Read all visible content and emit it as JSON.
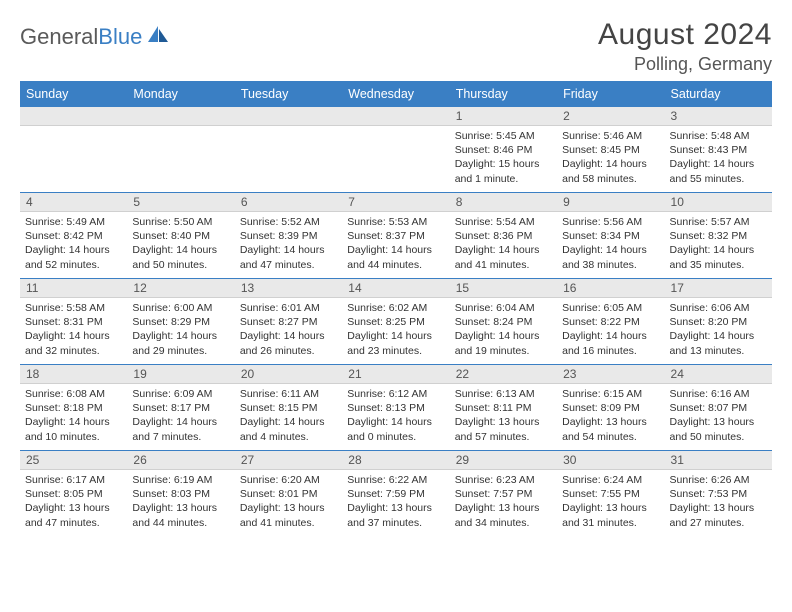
{
  "logo": {
    "part1": "General",
    "part2": "Blue"
  },
  "title": "August 2024",
  "location": "Polling, Germany",
  "colors": {
    "header_bg": "#3a7fc4",
    "header_text": "#ffffff",
    "daynum_bg": "#e9e9e9",
    "text": "#333333",
    "logo_gray": "#5a5a5a",
    "logo_blue": "#3a7fc4"
  },
  "fonts": {
    "title_size": 30,
    "location_size": 18,
    "weekday_size": 12.5,
    "daynum_size": 12,
    "detail_size": 10.5
  },
  "weekdays": [
    "Sunday",
    "Monday",
    "Tuesday",
    "Wednesday",
    "Thursday",
    "Friday",
    "Saturday"
  ],
  "weeks": [
    [
      null,
      null,
      null,
      null,
      {
        "n": "1",
        "sunrise": "5:45 AM",
        "sunset": "8:46 PM",
        "daylight": "15 hours and 1 minute."
      },
      {
        "n": "2",
        "sunrise": "5:46 AM",
        "sunset": "8:45 PM",
        "daylight": "14 hours and 58 minutes."
      },
      {
        "n": "3",
        "sunrise": "5:48 AM",
        "sunset": "8:43 PM",
        "daylight": "14 hours and 55 minutes."
      }
    ],
    [
      {
        "n": "4",
        "sunrise": "5:49 AM",
        "sunset": "8:42 PM",
        "daylight": "14 hours and 52 minutes."
      },
      {
        "n": "5",
        "sunrise": "5:50 AM",
        "sunset": "8:40 PM",
        "daylight": "14 hours and 50 minutes."
      },
      {
        "n": "6",
        "sunrise": "5:52 AM",
        "sunset": "8:39 PM",
        "daylight": "14 hours and 47 minutes."
      },
      {
        "n": "7",
        "sunrise": "5:53 AM",
        "sunset": "8:37 PM",
        "daylight": "14 hours and 44 minutes."
      },
      {
        "n": "8",
        "sunrise": "5:54 AM",
        "sunset": "8:36 PM",
        "daylight": "14 hours and 41 minutes."
      },
      {
        "n": "9",
        "sunrise": "5:56 AM",
        "sunset": "8:34 PM",
        "daylight": "14 hours and 38 minutes."
      },
      {
        "n": "10",
        "sunrise": "5:57 AM",
        "sunset": "8:32 PM",
        "daylight": "14 hours and 35 minutes."
      }
    ],
    [
      {
        "n": "11",
        "sunrise": "5:58 AM",
        "sunset": "8:31 PM",
        "daylight": "14 hours and 32 minutes."
      },
      {
        "n": "12",
        "sunrise": "6:00 AM",
        "sunset": "8:29 PM",
        "daylight": "14 hours and 29 minutes."
      },
      {
        "n": "13",
        "sunrise": "6:01 AM",
        "sunset": "8:27 PM",
        "daylight": "14 hours and 26 minutes."
      },
      {
        "n": "14",
        "sunrise": "6:02 AM",
        "sunset": "8:25 PM",
        "daylight": "14 hours and 23 minutes."
      },
      {
        "n": "15",
        "sunrise": "6:04 AM",
        "sunset": "8:24 PM",
        "daylight": "14 hours and 19 minutes."
      },
      {
        "n": "16",
        "sunrise": "6:05 AM",
        "sunset": "8:22 PM",
        "daylight": "14 hours and 16 minutes."
      },
      {
        "n": "17",
        "sunrise": "6:06 AM",
        "sunset": "8:20 PM",
        "daylight": "14 hours and 13 minutes."
      }
    ],
    [
      {
        "n": "18",
        "sunrise": "6:08 AM",
        "sunset": "8:18 PM",
        "daylight": "14 hours and 10 minutes."
      },
      {
        "n": "19",
        "sunrise": "6:09 AM",
        "sunset": "8:17 PM",
        "daylight": "14 hours and 7 minutes."
      },
      {
        "n": "20",
        "sunrise": "6:11 AM",
        "sunset": "8:15 PM",
        "daylight": "14 hours and 4 minutes."
      },
      {
        "n": "21",
        "sunrise": "6:12 AM",
        "sunset": "8:13 PM",
        "daylight": "14 hours and 0 minutes."
      },
      {
        "n": "22",
        "sunrise": "6:13 AM",
        "sunset": "8:11 PM",
        "daylight": "13 hours and 57 minutes."
      },
      {
        "n": "23",
        "sunrise": "6:15 AM",
        "sunset": "8:09 PM",
        "daylight": "13 hours and 54 minutes."
      },
      {
        "n": "24",
        "sunrise": "6:16 AM",
        "sunset": "8:07 PM",
        "daylight": "13 hours and 50 minutes."
      }
    ],
    [
      {
        "n": "25",
        "sunrise": "6:17 AM",
        "sunset": "8:05 PM",
        "daylight": "13 hours and 47 minutes."
      },
      {
        "n": "26",
        "sunrise": "6:19 AM",
        "sunset": "8:03 PM",
        "daylight": "13 hours and 44 minutes."
      },
      {
        "n": "27",
        "sunrise": "6:20 AM",
        "sunset": "8:01 PM",
        "daylight": "13 hours and 41 minutes."
      },
      {
        "n": "28",
        "sunrise": "6:22 AM",
        "sunset": "7:59 PM",
        "daylight": "13 hours and 37 minutes."
      },
      {
        "n": "29",
        "sunrise": "6:23 AM",
        "sunset": "7:57 PM",
        "daylight": "13 hours and 34 minutes."
      },
      {
        "n": "30",
        "sunrise": "6:24 AM",
        "sunset": "7:55 PM",
        "daylight": "13 hours and 31 minutes."
      },
      {
        "n": "31",
        "sunrise": "6:26 AM",
        "sunset": "7:53 PM",
        "daylight": "13 hours and 27 minutes."
      }
    ]
  ],
  "labels": {
    "sunrise": "Sunrise:",
    "sunset": "Sunset:",
    "daylight": "Daylight:"
  }
}
